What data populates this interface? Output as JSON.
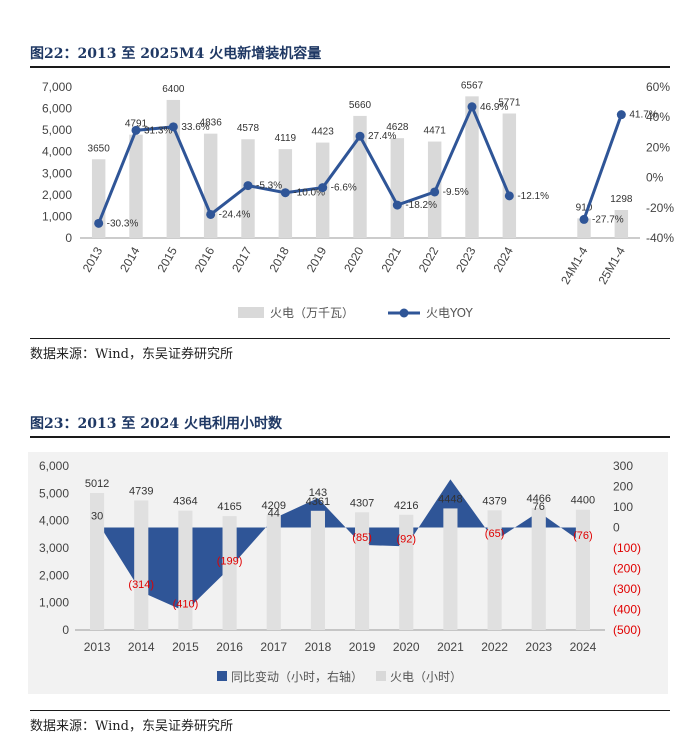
{
  "chart_data": [
    {
      "type": "bar",
      "title": "图22：2013 至 2025M4 火电新增装机容量",
      "categories": [
        "2013",
        "2014",
        "2015",
        "2016",
        "2017",
        "2018",
        "2019",
        "2020",
        "2021",
        "2022",
        "2023",
        "2024",
        "",
        "24M1-4",
        "25M1-4"
      ],
      "series": [
        {
          "name": "火电（万千瓦）",
          "type": "bar",
          "axis": "left",
          "values": [
            3650,
            4791,
            6400,
            4836,
            4578,
            4119,
            4423,
            5660,
            4628,
            4471,
            6567,
            5771,
            null,
            910,
            1298
          ],
          "labels": [
            "3650",
            "4791",
            "6400",
            "4836",
            "4578",
            "4119",
            "4423",
            "5660",
            "4628",
            "4471",
            "6567",
            "5771",
            "",
            "910",
            "1298"
          ]
        },
        {
          "name": "火电YOY",
          "type": "line",
          "axis": "right",
          "values": [
            -30.3,
            31.3,
            33.6,
            -24.4,
            -5.3,
            -10.0,
            -6.6,
            27.4,
            -18.2,
            -9.5,
            46.9,
            -12.1,
            null,
            -27.7,
            41.7
          ],
          "labels": [
            "-30.3%",
            "31.3%",
            "33.6%",
            "-24.4%",
            "-5.3%",
            "-10.0%",
            "-6.6%",
            "27.4%",
            "-18.2%",
            "-9.5%",
            "46.9%",
            "-12.1%",
            "",
            "-27.7%",
            "41.7%"
          ]
        }
      ],
      "yticks_left": [
        "0",
        "1,000",
        "2,000",
        "3,000",
        "4,000",
        "5,000",
        "6,000",
        "7,000"
      ],
      "yticks_right": [
        "-40%",
        "-20%",
        "0%",
        "20%",
        "40%",
        "60%"
      ],
      "ylim_left": [
        0,
        7000
      ],
      "ylim_right": [
        -40,
        60
      ],
      "legend_position": "bottom",
      "source": "数据来源：Wind，东吴证券研究所"
    },
    {
      "type": "bar",
      "title": "图23：2013 至 2024 火电利用小时数",
      "categories": [
        "2013",
        "2014",
        "2015",
        "2016",
        "2017",
        "2018",
        "2019",
        "2020",
        "2021",
        "2022",
        "2023",
        "2024"
      ],
      "series": [
        {
          "name": "同比变动（小时，右轴）",
          "type": "area",
          "axis": "right",
          "values": [
            30,
            -314,
            -410,
            -199,
            44,
            143,
            -85,
            -92,
            235,
            -65,
            76,
            -76
          ],
          "labels": [
            "30",
            "(314)",
            "(410)",
            "(199)",
            "44",
            "143",
            "(85)",
            "(92)",
            "",
            "(65)",
            "76",
            "(76)"
          ]
        },
        {
          "name": "火电（小时）",
          "type": "bar",
          "axis": "left",
          "values": [
            5012,
            4739,
            4364,
            4165,
            4209,
            4361,
            4307,
            4216,
            4448,
            4379,
            4466,
            4400
          ],
          "labels": [
            "5012",
            "4739",
            "4364",
            "4165",
            "4209",
            "4361",
            "4307",
            "4216",
            "4448",
            "4379",
            "4466",
            "4400"
          ]
        }
      ],
      "yticks_left": [
        "0",
        "1,000",
        "2,000",
        "3,000",
        "4,000",
        "5,000",
        "6,000"
      ],
      "yticks_right": [
        "(500)",
        "(400)",
        "(300)",
        "(200)",
        "(100)",
        "0",
        "100",
        "200",
        "300"
      ],
      "ylim_left": [
        0,
        6000
      ],
      "ylim_right": [
        -500,
        300
      ],
      "legend_position": "bottom",
      "source": "数据来源：Wind，东吴证券研究所"
    }
  ]
}
